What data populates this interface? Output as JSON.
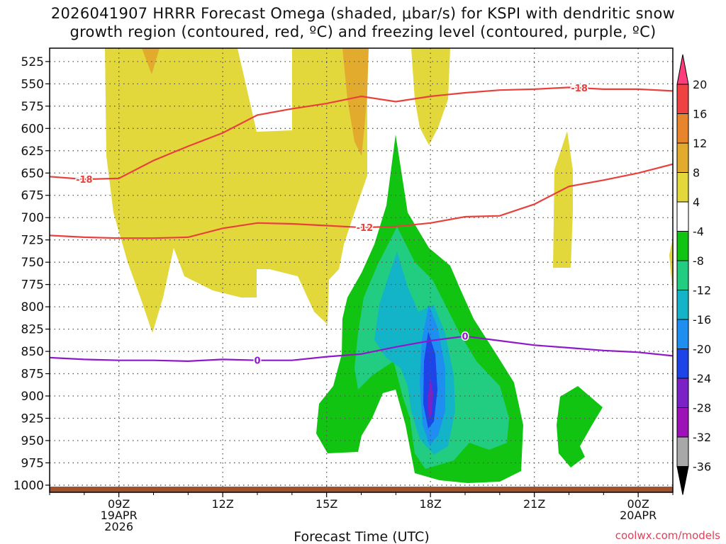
{
  "chart_data": {
    "type": "time-height",
    "title_line1": "2026041907 HRRR Forecast Omega (shaded, μbar/s) for KSPI with dendritic snow",
    "title_line2": "growth region (contoured, red, ºC) and freezing level (contoured, purple, ºC)",
    "xlabel": "Forecast Time (UTC)",
    "credit": "coolwx.com/models",
    "x_range_hours": [
      7,
      25
    ],
    "y_range_mb": [
      1008,
      510
    ],
    "y_ticks": [
      "525",
      "550",
      "575",
      "600",
      "625",
      "650",
      "675",
      "700",
      "725",
      "750",
      "775",
      "800",
      "825",
      "850",
      "875",
      "900",
      "925",
      "950",
      "975",
      "1000"
    ],
    "x_ticks": [
      {
        "hour": 9,
        "label": "09Z",
        "date": "19APR",
        "year": "2026"
      },
      {
        "hour": 12,
        "label": "12Z"
      },
      {
        "hour": 15,
        "label": "15Z"
      },
      {
        "hour": 18,
        "label": "18Z"
      },
      {
        "hour": 21,
        "label": "21Z"
      },
      {
        "hour": 24,
        "label": "00Z",
        "date": "20APR"
      }
    ],
    "colorbar": {
      "labels": [
        "20",
        "16",
        "12",
        "8",
        "4",
        "-4",
        "-8",
        "-12",
        "-16",
        "-20",
        "-24",
        "-28",
        "-32",
        "-36"
      ],
      "colors": [
        "#ff3c7c",
        "#ef4343",
        "#e8842c",
        "#e2ab2e",
        "#e3d83b",
        "#ffffff",
        "#12c412",
        "#22cc80",
        "#14b4c8",
        "#1e8ef0",
        "#1c44e8",
        "#7a22c8",
        "#9c12b8",
        "#a8a8a8",
        "#000000"
      ]
    },
    "contours": {
      "minus18": {
        "label": "-18",
        "color": "#e8413c",
        "points": [
          [
            7,
            654
          ],
          [
            8,
            657
          ],
          [
            9,
            656
          ],
          [
            10,
            636
          ],
          [
            11,
            620
          ],
          [
            12,
            605
          ],
          [
            13,
            585
          ],
          [
            14,
            578
          ],
          [
            15,
            572
          ],
          [
            16,
            564
          ],
          [
            17,
            570
          ],
          [
            18,
            564
          ],
          [
            19,
            560
          ],
          [
            20,
            557
          ],
          [
            21,
            556
          ],
          [
            22,
            554
          ],
          [
            23,
            556
          ],
          [
            24,
            556
          ],
          [
            25,
            558
          ]
        ],
        "label_hours": [
          8,
          22.3
        ]
      },
      "minus12": {
        "label": "-12",
        "color": "#e8413c",
        "points": [
          [
            7,
            720
          ],
          [
            8,
            722
          ],
          [
            9,
            723
          ],
          [
            10,
            723
          ],
          [
            11,
            722
          ],
          [
            12,
            712
          ],
          [
            13,
            706
          ],
          [
            14,
            707
          ],
          [
            15,
            709
          ],
          [
            16,
            711
          ],
          [
            17,
            710
          ],
          [
            18,
            706
          ],
          [
            19,
            699
          ],
          [
            20,
            698
          ],
          [
            21,
            685
          ],
          [
            22,
            665
          ],
          [
            23,
            658
          ],
          [
            24,
            650
          ],
          [
            25,
            640
          ]
        ],
        "label_hours": [
          16.1
        ]
      },
      "zero": {
        "label": "0",
        "color": "#8f18c8",
        "points": [
          [
            7,
            857
          ],
          [
            8,
            859
          ],
          [
            9,
            860
          ],
          [
            10,
            860
          ],
          [
            11,
            861
          ],
          [
            12,
            859
          ],
          [
            13,
            860
          ],
          [
            14,
            860
          ],
          [
            15,
            856
          ],
          [
            16,
            853
          ],
          [
            17,
            845
          ],
          [
            18,
            838
          ],
          [
            19,
            833
          ],
          [
            20,
            838
          ],
          [
            21,
            843
          ],
          [
            22,
            846
          ],
          [
            23,
            849
          ],
          [
            24,
            851
          ],
          [
            25,
            855
          ]
        ],
        "label_hours": [
          13,
          19
        ]
      }
    }
  }
}
